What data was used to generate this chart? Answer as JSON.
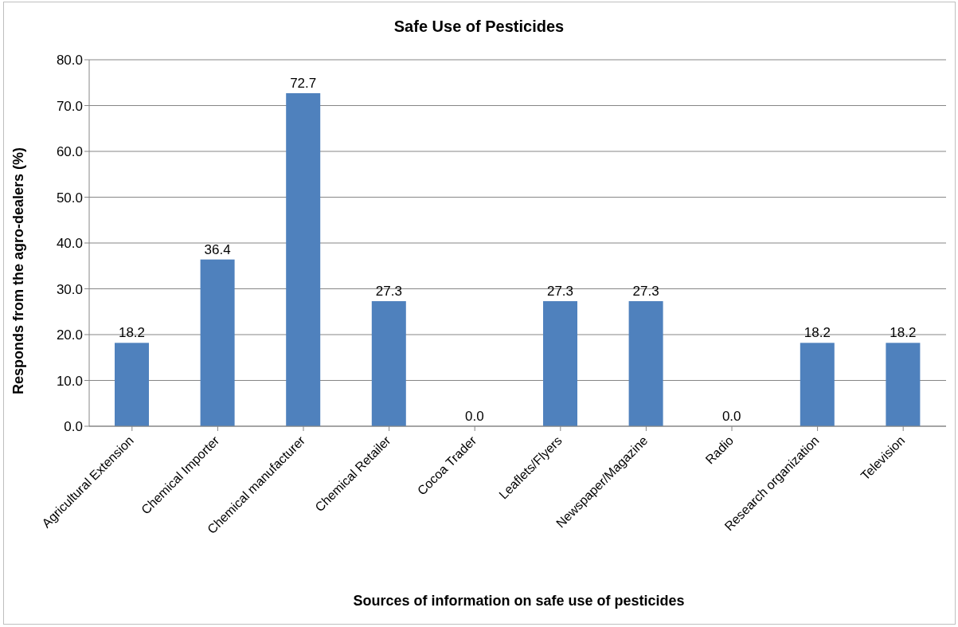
{
  "chart_data": {
    "type": "bar",
    "title": "Safe Use of Pesticides",
    "xlabel": "Sources of information on safe use of pesticides",
    "ylabel": "Responds from the agro-dealers (%)",
    "categories": [
      "Agricultural Extension",
      "Chemical Importer",
      "Chemical manufacturer",
      "Chemical Retailer",
      "Cocoa Trader",
      "Leaflets/Flyers",
      "Newspaper/Magazine",
      "Radio",
      "Research organization",
      "Television"
    ],
    "values": [
      18.2,
      36.4,
      72.7,
      27.3,
      0,
      27.3,
      27.3,
      0,
      18.2,
      18.2
    ],
    "value_labels": [
      "18.2",
      "36.4",
      "72.7",
      "27.3",
      "0.0",
      "27.3",
      "27.3",
      "0.0",
      "18.2",
      "18.2"
    ],
    "color": "#4f81bd",
    "ylim": [
      0,
      80
    ],
    "yticks": [
      {
        "value": 0,
        "label": "0.0"
      },
      {
        "value": 10,
        "label": "10.0"
      },
      {
        "value": 20,
        "label": "20.0"
      },
      {
        "value": 30,
        "label": "30.0"
      },
      {
        "value": 40,
        "label": "40.0"
      },
      {
        "value": 50,
        "label": "50.0"
      },
      {
        "value": 60,
        "label": "60.0"
      },
      {
        "value": 70,
        "label": "70.0"
      },
      {
        "value": 80,
        "label": "80.0"
      }
    ],
    "grid": "y"
  }
}
